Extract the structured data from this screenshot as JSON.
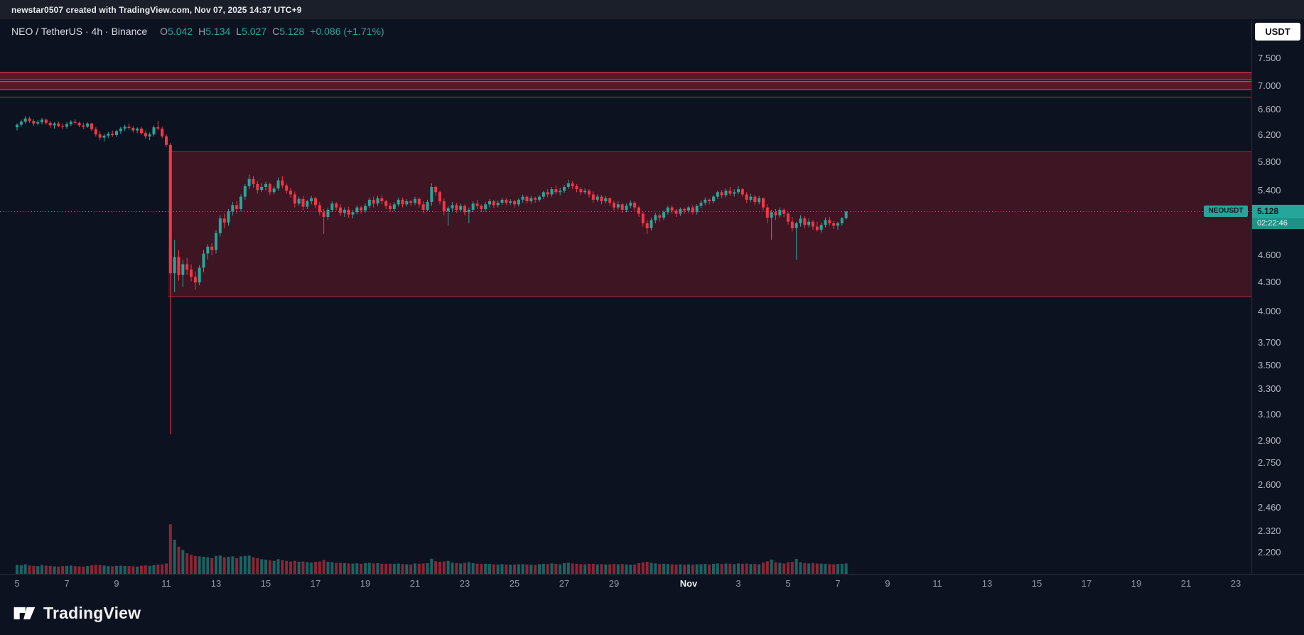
{
  "topbar": {
    "attribution": "newstar0507 created with TradingView.com, Nov 07, 2025 14:37 UTC+9"
  },
  "legend": {
    "title": "NEO / TetherUS · 4h · Binance",
    "ohlc": [
      {
        "label": "O",
        "value": "5.042"
      },
      {
        "label": "H",
        "value": "5.134"
      },
      {
        "label": "L",
        "value": "5.027"
      },
      {
        "label": "C",
        "value": "5.128"
      }
    ],
    "change": "+0.086 (+1.71%)"
  },
  "currency_button": "USDT",
  "price_axis": {
    "labels": [
      "7.500",
      "7.000",
      "6.600",
      "6.200",
      "5.800",
      "5.400",
      "4.600",
      "4.300",
      "4.000",
      "3.700",
      "3.500",
      "3.300",
      "3.100",
      "2.900",
      "2.750",
      "2.600",
      "2.460",
      "2.320",
      "2.200"
    ],
    "current": {
      "symbol_tag": "NEOUSDT",
      "price": "5.128",
      "countdown": "02:22:46"
    }
  },
  "time_axis": {
    "labels": [
      "5",
      "7",
      "9",
      "11",
      "13",
      "15",
      "17",
      "19",
      "21",
      "23",
      "25",
      "27",
      "29",
      "Nov",
      "3",
      "5",
      "7",
      "9",
      "11",
      "13",
      "15",
      "17",
      "19",
      "21",
      "23"
    ]
  },
  "footer": {
    "brand": "TradingView"
  },
  "colors": {
    "background": "#0d1220",
    "up": "#26a69a",
    "down": "#f23645",
    "panel_border": "#2a2e39",
    "zone_fill": "rgba(165,28,45,0.32)",
    "zone_border": "rgba(200,42,58,0.85)",
    "band_fill": "rgba(195,34,50,0.42)",
    "band_border": "#e0394a",
    "current_price_line": "#26a69a"
  },
  "chart_data": {
    "type": "candlestick",
    "symbol": "NEOUSDT",
    "exchange": "Binance",
    "interval": "4h",
    "scale": "log",
    "axis": {
      "price_at_top": 7.5,
      "price_at_bottom": 2.2
    },
    "current_price": 5.128,
    "countdown": "02:22:46",
    "start_label": "Oct 5",
    "end_label": "Nov 7",
    "zones": [
      {
        "type": "box",
        "price_top": 5.95,
        "price_bottom": 4.15,
        "start_index": 37,
        "note": "post-crash range zone"
      },
      {
        "type": "band",
        "price_top": 7.24,
        "price_bottom": 7.11,
        "note": "upper resistance band"
      },
      {
        "type": "band",
        "price_top": 7.08,
        "price_bottom": 6.94,
        "note": "resistance band"
      },
      {
        "type": "line",
        "price": 6.81,
        "note": "resistance line"
      }
    ],
    "volume_unit": "relative",
    "candles": [
      [
        6.32,
        6.38,
        6.27,
        6.36,
        180
      ],
      [
        6.36,
        6.44,
        6.33,
        6.41,
        160
      ],
      [
        6.41,
        6.5,
        6.38,
        6.46,
        210
      ],
      [
        6.46,
        6.49,
        6.39,
        6.42,
        150
      ],
      [
        6.42,
        6.45,
        6.34,
        6.38,
        130
      ],
      [
        6.38,
        6.43,
        6.35,
        6.4,
        120
      ],
      [
        6.4,
        6.47,
        6.36,
        6.44,
        170
      ],
      [
        6.44,
        6.46,
        6.36,
        6.39,
        140
      ],
      [
        6.39,
        6.42,
        6.31,
        6.35,
        130
      ],
      [
        6.35,
        6.4,
        6.3,
        6.38,
        110
      ],
      [
        6.38,
        6.41,
        6.32,
        6.34,
        100
      ],
      [
        6.34,
        6.38,
        6.29,
        6.33,
        120
      ],
      [
        6.33,
        6.4,
        6.3,
        6.37,
        130
      ],
      [
        6.37,
        6.43,
        6.34,
        6.41,
        140
      ],
      [
        6.41,
        6.45,
        6.36,
        6.39,
        120
      ],
      [
        6.39,
        6.41,
        6.32,
        6.35,
        110
      ],
      [
        6.35,
        6.39,
        6.29,
        6.33,
        100
      ],
      [
        6.33,
        6.4,
        6.31,
        6.38,
        120
      ],
      [
        6.38,
        6.39,
        6.26,
        6.29,
        160
      ],
      [
        6.29,
        6.32,
        6.18,
        6.21,
        180
      ],
      [
        6.21,
        6.26,
        6.12,
        6.16,
        170
      ],
      [
        6.16,
        6.22,
        6.1,
        6.19,
        150
      ],
      [
        6.19,
        6.25,
        6.15,
        6.22,
        120
      ],
      [
        6.22,
        6.27,
        6.17,
        6.2,
        110
      ],
      [
        6.2,
        6.28,
        6.17,
        6.26,
        130
      ],
      [
        6.26,
        6.33,
        6.22,
        6.3,
        140
      ],
      [
        6.3,
        6.36,
        6.26,
        6.33,
        130
      ],
      [
        6.33,
        6.38,
        6.28,
        6.31,
        120
      ],
      [
        6.31,
        6.34,
        6.24,
        6.27,
        110
      ],
      [
        6.27,
        6.32,
        6.23,
        6.3,
        100
      ],
      [
        6.3,
        6.33,
        6.2,
        6.23,
        140
      ],
      [
        6.23,
        6.27,
        6.14,
        6.18,
        150
      ],
      [
        6.18,
        6.24,
        6.12,
        6.21,
        130
      ],
      [
        6.21,
        6.35,
        6.18,
        6.32,
        170
      ],
      [
        6.32,
        6.42,
        6.27,
        6.3,
        190
      ],
      [
        6.3,
        6.33,
        6.15,
        6.18,
        210
      ],
      [
        6.18,
        6.21,
        6.02,
        6.05,
        260
      ],
      [
        6.05,
        6.08,
        2.95,
        4.4,
        8600
      ],
      [
        4.4,
        4.78,
        4.2,
        4.58,
        3900
      ],
      [
        4.58,
        4.66,
        4.32,
        4.38,
        2400
      ],
      [
        4.38,
        4.55,
        4.25,
        4.5,
        1800
      ],
      [
        4.5,
        4.57,
        4.38,
        4.44,
        1300
      ],
      [
        4.44,
        4.5,
        4.31,
        4.36,
        1100
      ],
      [
        4.36,
        4.42,
        4.22,
        4.3,
        950
      ],
      [
        4.3,
        4.49,
        4.27,
        4.46,
        900
      ],
      [
        4.46,
        4.66,
        4.41,
        4.62,
        850
      ],
      [
        4.62,
        4.73,
        4.55,
        4.7,
        800
      ],
      [
        4.7,
        4.74,
        4.6,
        4.66,
        700
      ],
      [
        4.66,
        4.9,
        4.62,
        4.86,
        950
      ],
      [
        4.86,
        5.08,
        4.82,
        5.04,
        1000
      ],
      [
        5.04,
        5.1,
        4.92,
        4.99,
        800
      ],
      [
        4.99,
        5.16,
        4.95,
        5.13,
        850
      ],
      [
        5.13,
        5.25,
        5.08,
        5.21,
        900
      ],
      [
        5.21,
        5.26,
        5.1,
        5.16,
        700
      ],
      [
        5.16,
        5.35,
        5.13,
        5.32,
        900
      ],
      [
        5.32,
        5.49,
        5.28,
        5.46,
        950
      ],
      [
        5.46,
        5.62,
        5.42,
        5.56,
        1000
      ],
      [
        5.56,
        5.6,
        5.44,
        5.49,
        800
      ],
      [
        5.49,
        5.53,
        5.36,
        5.41,
        700
      ],
      [
        5.41,
        5.5,
        5.38,
        5.45,
        600
      ],
      [
        5.45,
        5.52,
        5.4,
        5.49,
        550
      ],
      [
        5.49,
        5.51,
        5.34,
        5.38,
        500
      ],
      [
        5.38,
        5.46,
        5.35,
        5.43,
        450
      ],
      [
        5.43,
        5.58,
        5.4,
        5.54,
        600
      ],
      [
        5.54,
        5.6,
        5.43,
        5.47,
        500
      ],
      [
        5.47,
        5.5,
        5.36,
        5.4,
        450
      ],
      [
        5.4,
        5.44,
        5.31,
        5.35,
        400
      ],
      [
        5.35,
        5.39,
        5.18,
        5.23,
        450
      ],
      [
        5.23,
        5.32,
        5.2,
        5.29,
        380
      ],
      [
        5.29,
        5.33,
        5.14,
        5.19,
        400
      ],
      [
        5.19,
        5.28,
        5.16,
        5.26,
        350
      ],
      [
        5.26,
        5.33,
        5.22,
        5.3,
        320
      ],
      [
        5.3,
        5.32,
        5.17,
        5.21,
        380
      ],
      [
        5.21,
        5.25,
        5.08,
        5.12,
        400
      ],
      [
        5.12,
        5.16,
        4.85,
        5.06,
        520
      ],
      [
        5.06,
        5.18,
        5.02,
        5.15,
        380
      ],
      [
        5.15,
        5.26,
        5.12,
        5.23,
        350
      ],
      [
        5.23,
        5.25,
        5.14,
        5.18,
        300
      ],
      [
        5.18,
        5.22,
        5.07,
        5.11,
        300
      ],
      [
        5.11,
        5.18,
        5.06,
        5.15,
        280
      ],
      [
        5.15,
        5.19,
        5.05,
        5.09,
        260
      ],
      [
        5.09,
        5.15,
        5.04,
        5.12,
        250
      ],
      [
        5.12,
        5.21,
        5.09,
        5.18,
        270
      ],
      [
        5.18,
        5.2,
        5.1,
        5.14,
        240
      ],
      [
        5.14,
        5.23,
        5.11,
        5.2,
        280
      ],
      [
        5.2,
        5.31,
        5.17,
        5.28,
        300
      ],
      [
        5.28,
        5.32,
        5.18,
        5.23,
        260
      ],
      [
        5.23,
        5.33,
        5.2,
        5.3,
        280
      ],
      [
        5.3,
        5.34,
        5.22,
        5.26,
        240
      ],
      [
        5.26,
        5.28,
        5.16,
        5.2,
        230
      ],
      [
        5.2,
        5.24,
        5.12,
        5.16,
        240
      ],
      [
        5.16,
        5.25,
        5.13,
        5.22,
        230
      ],
      [
        5.22,
        5.31,
        5.19,
        5.28,
        250
      ],
      [
        5.28,
        5.31,
        5.18,
        5.22,
        220
      ],
      [
        5.22,
        5.29,
        5.19,
        5.26,
        210
      ],
      [
        5.26,
        5.28,
        5.2,
        5.24,
        200
      ],
      [
        5.24,
        5.32,
        5.21,
        5.29,
        260
      ],
      [
        5.29,
        5.31,
        5.18,
        5.22,
        240
      ],
      [
        5.22,
        5.26,
        5.11,
        5.15,
        260
      ],
      [
        5.15,
        5.28,
        5.13,
        5.25,
        280
      ],
      [
        5.25,
        5.5,
        5.2,
        5.45,
        650
      ],
      [
        5.45,
        5.47,
        5.33,
        5.38,
        420
      ],
      [
        5.38,
        5.4,
        5.22,
        5.26,
        380
      ],
      [
        5.26,
        5.3,
        5.08,
        5.13,
        400
      ],
      [
        5.13,
        5.2,
        4.95,
        5.17,
        450
      ],
      [
        5.17,
        5.25,
        5.12,
        5.21,
        320
      ],
      [
        5.21,
        5.24,
        5.11,
        5.15,
        280
      ],
      [
        5.15,
        5.23,
        5.12,
        5.2,
        260
      ],
      [
        5.2,
        5.22,
        5.08,
        5.12,
        300
      ],
      [
        5.12,
        5.18,
        4.98,
        5.15,
        340
      ],
      [
        5.15,
        5.26,
        5.12,
        5.23,
        280
      ],
      [
        5.23,
        5.28,
        5.16,
        5.2,
        250
      ],
      [
        5.2,
        5.22,
        5.12,
        5.16,
        230
      ],
      [
        5.16,
        5.25,
        5.13,
        5.22,
        240
      ],
      [
        5.22,
        5.29,
        5.18,
        5.26,
        230
      ],
      [
        5.26,
        5.28,
        5.17,
        5.21,
        210
      ],
      [
        5.21,
        5.27,
        5.18,
        5.24,
        200
      ],
      [
        5.24,
        5.31,
        5.21,
        5.28,
        220
      ],
      [
        5.28,
        5.3,
        5.21,
        5.24,
        200
      ],
      [
        5.24,
        5.29,
        5.21,
        5.26,
        190
      ],
      [
        5.26,
        5.28,
        5.18,
        5.22,
        200
      ],
      [
        5.22,
        5.3,
        5.19,
        5.28,
        210
      ],
      [
        5.28,
        5.35,
        5.24,
        5.32,
        220
      ],
      [
        5.32,
        5.34,
        5.23,
        5.26,
        200
      ],
      [
        5.26,
        5.33,
        5.23,
        5.3,
        190
      ],
      [
        5.3,
        5.32,
        5.24,
        5.28,
        180
      ],
      [
        5.28,
        5.34,
        5.25,
        5.32,
        220
      ],
      [
        5.32,
        5.4,
        5.29,
        5.38,
        240
      ],
      [
        5.38,
        5.42,
        5.31,
        5.35,
        220
      ],
      [
        5.35,
        5.45,
        5.32,
        5.42,
        260
      ],
      [
        5.42,
        5.47,
        5.35,
        5.38,
        230
      ],
      [
        5.38,
        5.44,
        5.34,
        5.4,
        210
      ],
      [
        5.4,
        5.48,
        5.37,
        5.45,
        280
      ],
      [
        5.45,
        5.55,
        5.42,
        5.5,
        300
      ],
      [
        5.5,
        5.53,
        5.42,
        5.46,
        260
      ],
      [
        5.46,
        5.49,
        5.38,
        5.42,
        240
      ],
      [
        5.42,
        5.45,
        5.34,
        5.38,
        220
      ],
      [
        5.38,
        5.43,
        5.35,
        5.4,
        200
      ],
      [
        5.4,
        5.42,
        5.31,
        5.35,
        230
      ],
      [
        5.35,
        5.39,
        5.24,
        5.28,
        240
      ],
      [
        5.28,
        5.35,
        5.25,
        5.32,
        210
      ],
      [
        5.32,
        5.34,
        5.22,
        5.26,
        220
      ],
      [
        5.26,
        5.33,
        5.23,
        5.3,
        200
      ],
      [
        5.3,
        5.31,
        5.2,
        5.24,
        210
      ],
      [
        5.24,
        5.27,
        5.14,
        5.18,
        230
      ],
      [
        5.18,
        5.26,
        5.15,
        5.22,
        210
      ],
      [
        5.22,
        5.24,
        5.11,
        5.15,
        220
      ],
      [
        5.15,
        5.23,
        5.12,
        5.2,
        200
      ],
      [
        5.2,
        5.27,
        5.17,
        5.24,
        190
      ],
      [
        5.24,
        5.26,
        5.14,
        5.18,
        200
      ],
      [
        5.18,
        5.2,
        5.06,
        5.1,
        280
      ],
      [
        5.1,
        5.13,
        4.94,
        4.98,
        340
      ],
      [
        4.98,
        5.02,
        4.85,
        4.92,
        380
      ],
      [
        4.92,
        5.05,
        4.89,
        5.02,
        300
      ],
      [
        5.02,
        5.11,
        4.98,
        5.08,
        260
      ],
      [
        5.08,
        5.1,
        5.0,
        5.05,
        230
      ],
      [
        5.05,
        5.14,
        5.02,
        5.12,
        240
      ],
      [
        5.12,
        5.2,
        5.09,
        5.18,
        230
      ],
      [
        5.18,
        5.21,
        5.1,
        5.14,
        210
      ],
      [
        5.14,
        5.16,
        5.06,
        5.1,
        200
      ],
      [
        5.1,
        5.18,
        5.07,
        5.16,
        210
      ],
      [
        5.16,
        5.18,
        5.1,
        5.14,
        190
      ],
      [
        5.14,
        5.2,
        5.11,
        5.18,
        200
      ],
      [
        5.18,
        5.21,
        5.09,
        5.12,
        190
      ],
      [
        5.12,
        5.22,
        5.09,
        5.2,
        210
      ],
      [
        5.2,
        5.27,
        5.17,
        5.24,
        220
      ],
      [
        5.24,
        5.31,
        5.21,
        5.28,
        230
      ],
      [
        5.28,
        5.3,
        5.22,
        5.26,
        200
      ],
      [
        5.26,
        5.34,
        5.23,
        5.32,
        240
      ],
      [
        5.32,
        5.4,
        5.29,
        5.38,
        260
      ],
      [
        5.38,
        5.41,
        5.3,
        5.34,
        230
      ],
      [
        5.34,
        5.43,
        5.31,
        5.4,
        250
      ],
      [
        5.4,
        5.45,
        5.33,
        5.36,
        240
      ],
      [
        5.36,
        5.42,
        5.32,
        5.38,
        220
      ],
      [
        5.38,
        5.46,
        5.35,
        5.42,
        260
      ],
      [
        5.42,
        5.44,
        5.32,
        5.35,
        240
      ],
      [
        5.35,
        5.38,
        5.24,
        5.28,
        250
      ],
      [
        5.28,
        5.36,
        5.25,
        5.32,
        220
      ],
      [
        5.32,
        5.34,
        5.21,
        5.25,
        230
      ],
      [
        5.25,
        5.33,
        5.22,
        5.3,
        210
      ],
      [
        5.3,
        5.31,
        5.14,
        5.18,
        320
      ],
      [
        5.18,
        5.22,
        4.98,
        5.05,
        420
      ],
      [
        5.05,
        5.15,
        4.78,
        5.12,
        560
      ],
      [
        5.12,
        5.16,
        5.02,
        5.08,
        340
      ],
      [
        5.08,
        5.18,
        5.05,
        5.15,
        300
      ],
      [
        5.15,
        5.17,
        5.06,
        5.1,
        260
      ],
      [
        5.1,
        5.12,
        4.96,
        5.0,
        340
      ],
      [
        5.0,
        5.06,
        4.88,
        4.92,
        380
      ],
      [
        4.92,
        5.0,
        4.55,
        4.98,
        620
      ],
      [
        4.98,
        5.08,
        4.94,
        5.04,
        340
      ],
      [
        5.04,
        5.07,
        4.92,
        4.96,
        290
      ],
      [
        4.96,
        5.04,
        4.93,
        5.0,
        260
      ],
      [
        5.0,
        5.02,
        4.9,
        4.94,
        280
      ],
      [
        4.94,
        5.0,
        4.88,
        4.9,
        260
      ],
      [
        4.9,
        4.99,
        4.87,
        4.96,
        250
      ],
      [
        4.96,
        5.05,
        4.93,
        5.02,
        240
      ],
      [
        5.02,
        5.06,
        4.95,
        4.98,
        220
      ],
      [
        4.98,
        5.01,
        4.91,
        4.95,
        210
      ],
      [
        4.95,
        5.0,
        4.9,
        4.98,
        230
      ],
      [
        4.98,
        5.06,
        4.95,
        5.042,
        240
      ],
      [
        5.042,
        5.134,
        5.027,
        5.128,
        260
      ]
    ]
  }
}
